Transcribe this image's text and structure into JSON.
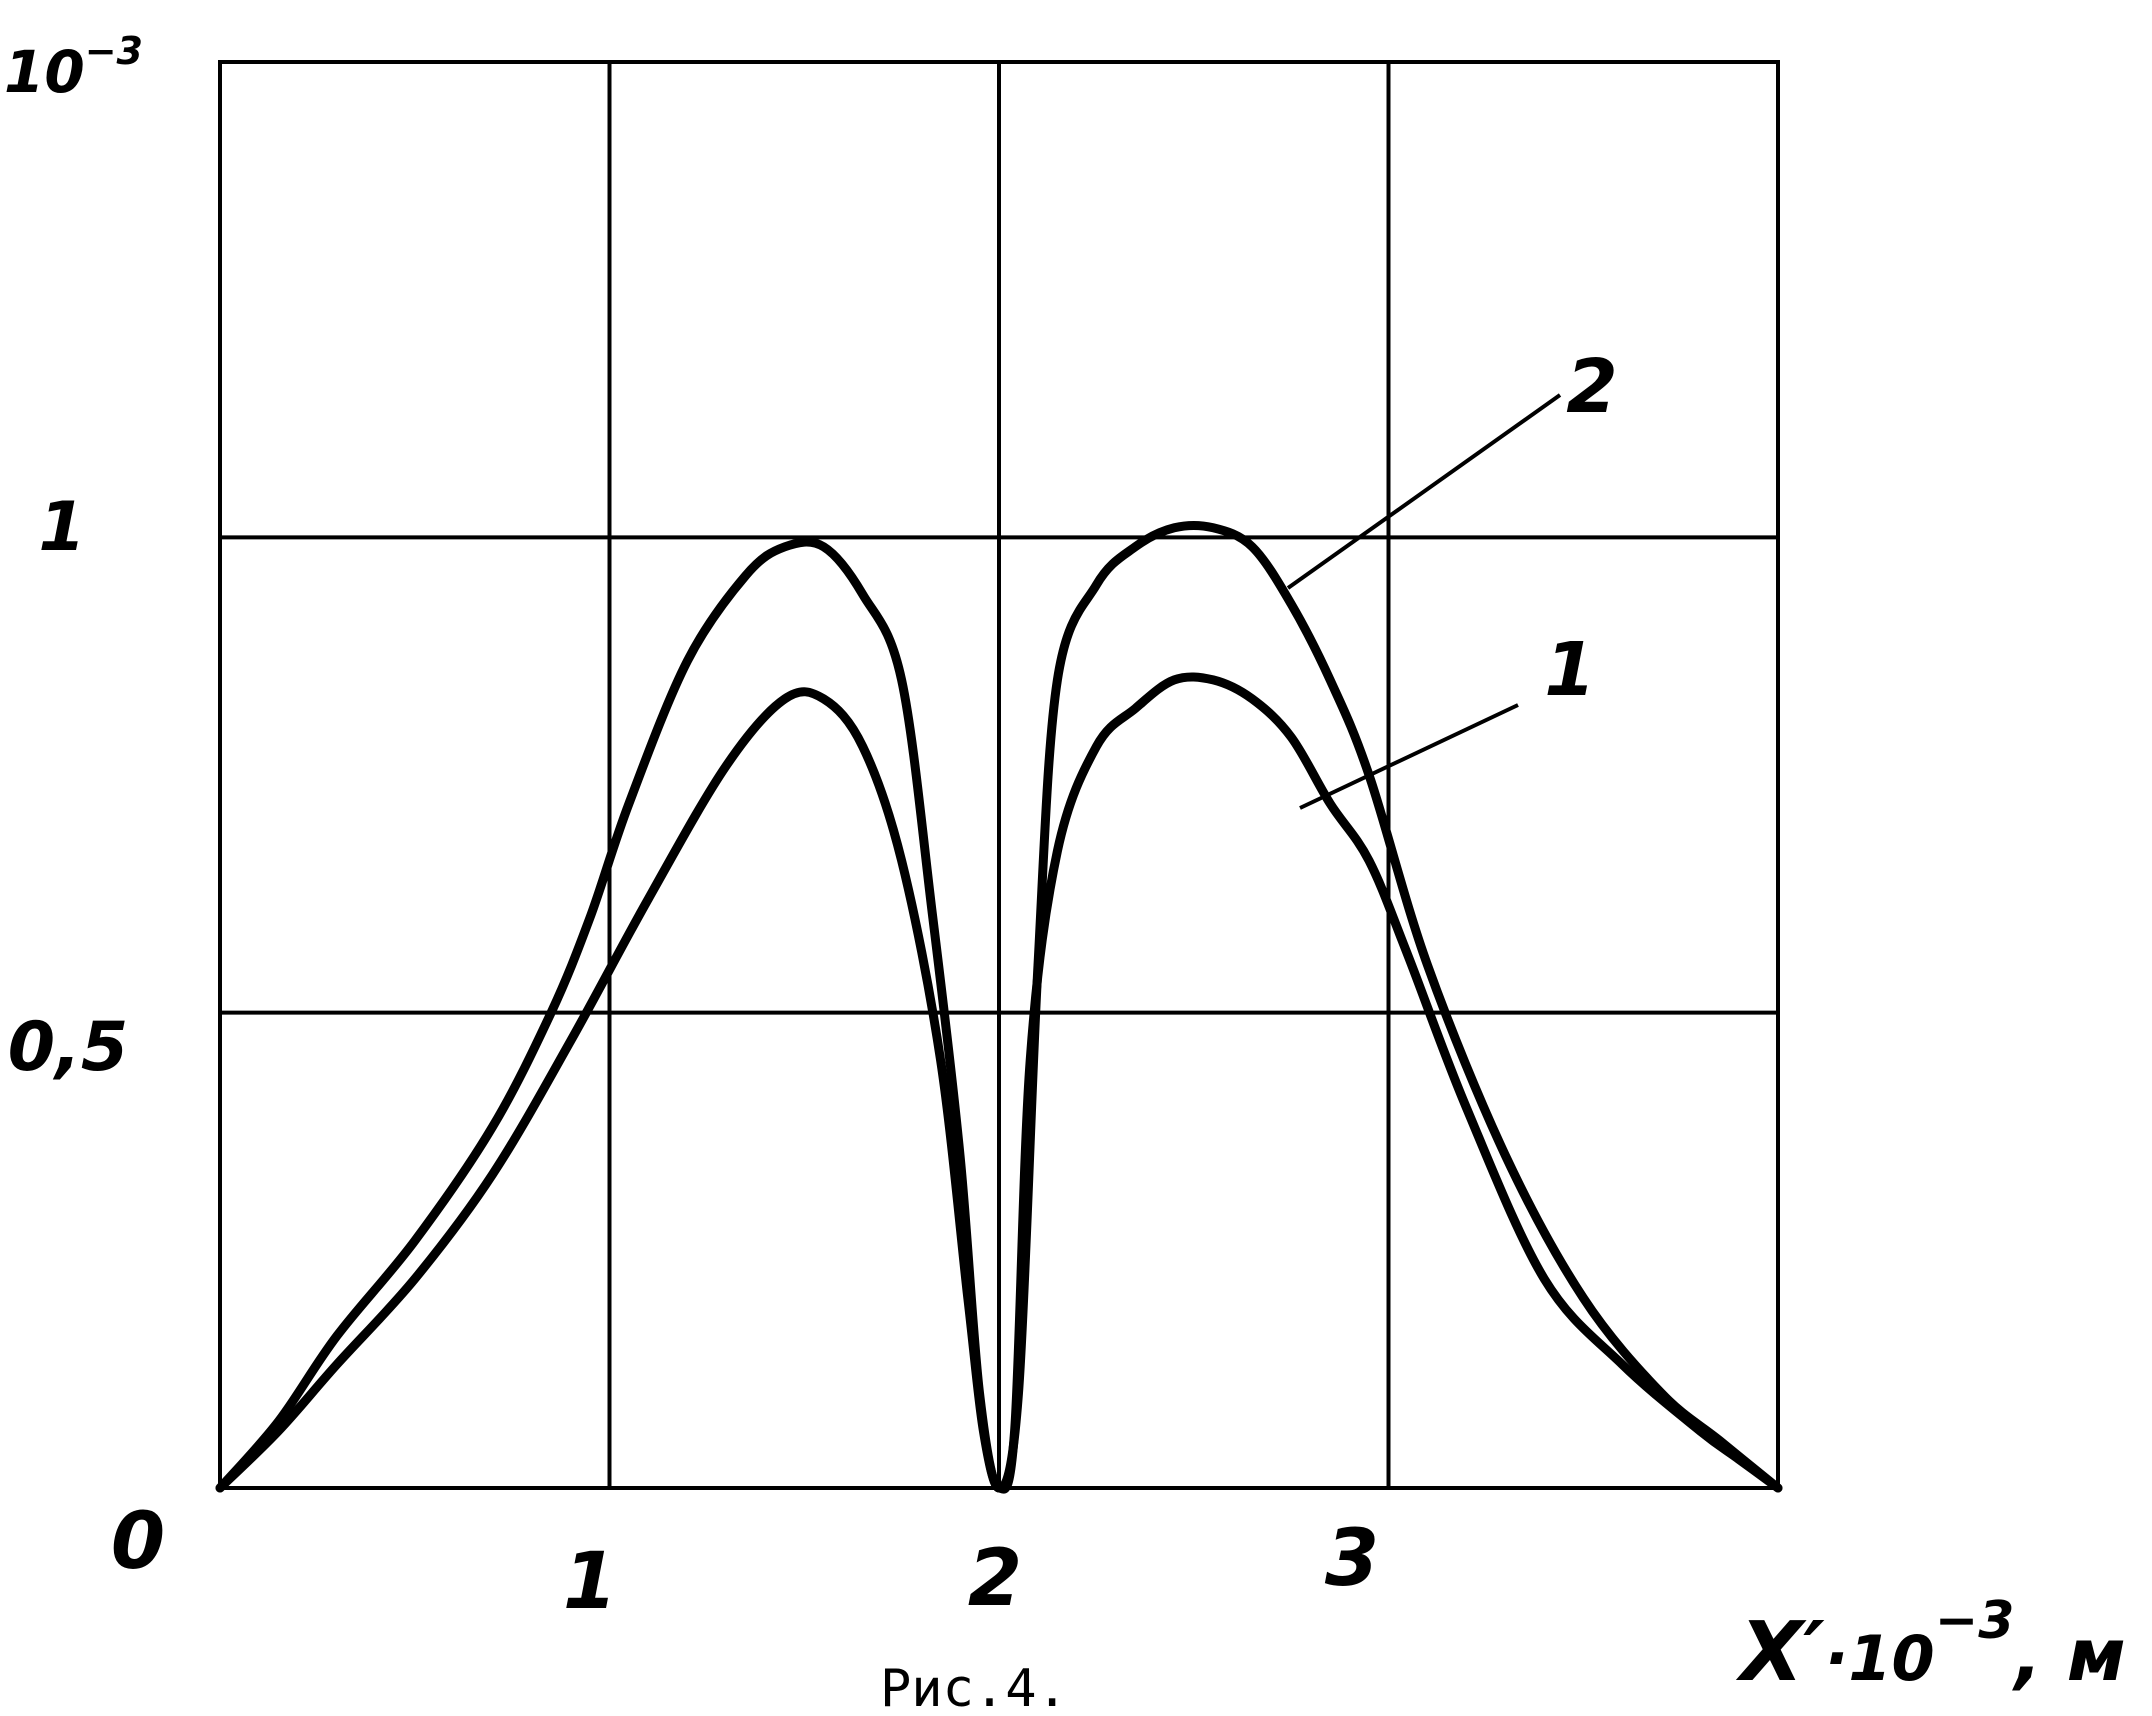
{
  "figure": {
    "caption": "Рис.4."
  },
  "chart_data": {
    "type": "line",
    "title": "",
    "xlabel": {
      "base": "X",
      "prime": "′",
      "multiplier": "·10",
      "exponent": "−3",
      "unit": ", м"
    },
    "ylabel": {
      "base": "10",
      "exponent": "−3"
    },
    "xlim": [
      0,
      4
    ],
    "ylim": [
      0,
      1.5
    ],
    "grid": true,
    "xticks": [
      {
        "value": 0,
        "label": "0"
      },
      {
        "value": 1,
        "label": "1"
      },
      {
        "value": 2,
        "label": "2"
      },
      {
        "value": 3,
        "label": "3"
      }
    ],
    "yticks": [
      {
        "value": 0.5,
        "label": "0,5"
      },
      {
        "value": 1,
        "label": "1"
      }
    ],
    "series": [
      {
        "name": "1",
        "x": [
          0,
          0.15,
          0.3,
          0.5,
          0.7,
          0.9,
          1.1,
          1.3,
          1.45,
          1.55,
          1.65,
          1.75,
          1.85,
          1.92,
          1.96,
          2.0,
          2.04,
          2.08,
          2.15,
          2.25,
          2.35,
          2.45,
          2.55,
          2.65,
          2.75,
          2.85,
          2.95,
          3.05,
          3.2,
          3.4,
          3.6,
          3.8,
          3.9,
          4.0
        ],
        "y": [
          0,
          0.06,
          0.13,
          0.22,
          0.33,
          0.47,
          0.62,
          0.76,
          0.83,
          0.83,
          0.78,
          0.66,
          0.45,
          0.2,
          0.06,
          0,
          0.06,
          0.45,
          0.67,
          0.78,
          0.82,
          0.85,
          0.85,
          0.83,
          0.79,
          0.72,
          0.66,
          0.56,
          0.4,
          0.22,
          0.13,
          0.06,
          0.03,
          0
        ]
      },
      {
        "name": "2",
        "x": [
          0,
          0.15,
          0.3,
          0.5,
          0.7,
          0.85,
          0.95,
          1.05,
          1.2,
          1.35,
          1.45,
          1.55,
          1.65,
          1.75,
          1.83,
          1.9,
          1.95,
          2.0,
          2.05,
          2.1,
          2.15,
          2.25,
          2.35,
          2.45,
          2.55,
          2.65,
          2.75,
          2.85,
          2.95,
          3.1,
          3.3,
          3.5,
          3.7,
          3.85,
          4.0
        ],
        "y": [
          0,
          0.07,
          0.16,
          0.26,
          0.38,
          0.5,
          0.6,
          0.72,
          0.87,
          0.96,
          0.99,
          0.99,
          0.94,
          0.85,
          0.6,
          0.35,
          0.1,
          0,
          0.1,
          0.55,
          0.85,
          0.95,
          0.99,
          1.01,
          1.01,
          0.99,
          0.93,
          0.85,
          0.75,
          0.55,
          0.35,
          0.2,
          0.1,
          0.05,
          0
        ]
      }
    ],
    "annotations": [
      {
        "text": "1",
        "series": "1"
      },
      {
        "text": "2",
        "series": "2"
      }
    ]
  }
}
